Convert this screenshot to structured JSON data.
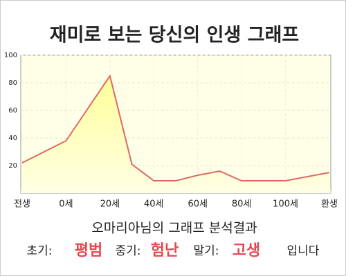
{
  "chart_data": {
    "type": "area",
    "title": "재미로 보는 당신의 인생 그래프",
    "categories": [
      "전생",
      null,
      "0세",
      null,
      "20세",
      null,
      "40세",
      null,
      "60세",
      null,
      "80세",
      null,
      "100세",
      null,
      "환생"
    ],
    "values": [
      22,
      30,
      38,
      61.5,
      85,
      21,
      9,
      9,
      13,
      16,
      9,
      9,
      9,
      12,
      15
    ],
    "color": "#e06666",
    "fill": "#ffffb0",
    "ylim": [
      0,
      100
    ],
    "yticks": [
      20,
      40,
      60,
      80,
      100
    ],
    "grid": true,
    "result_title": "오마리아님의 그래프 분석결과",
    "result": [
      {
        "text": "초기:",
        "color": "#222222"
      },
      {
        "text": "평범",
        "color": "#e8474f"
      },
      {
        "text": "중기:",
        "color": "#222222"
      },
      {
        "text": "험난",
        "color": "#e8474f"
      },
      {
        "text": "말기:",
        "color": "#222222"
      },
      {
        "text": "고생",
        "color": "#e8474f"
      },
      {
        "text": "입니다",
        "color": "#222222"
      }
    ]
  }
}
